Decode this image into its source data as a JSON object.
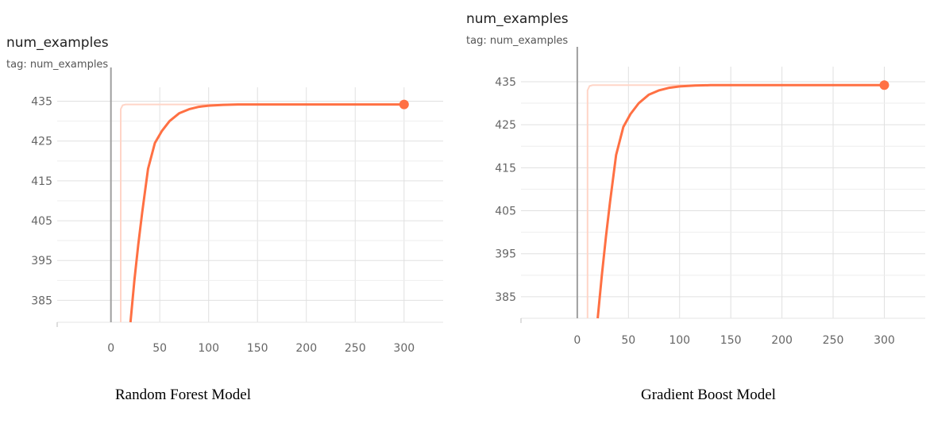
{
  "charts": [
    {
      "title": "num_examples",
      "tag": "tag: num_examples",
      "caption": "Random Forest Model"
    },
    {
      "title": "num_examples",
      "tag": "tag: num_examples",
      "caption": "Gradient Boost Model"
    }
  ],
  "colors": {
    "smoothed": "#ff7043",
    "raw": "#ffd5c7",
    "grid": "#e0e0e0",
    "zero_line": "#9e9e9e"
  },
  "chart_data": [
    {
      "type": "line",
      "title": "num_examples",
      "subtitle": "tag: num_examples",
      "xlabel": "",
      "ylabel": "",
      "xlim": [
        -55,
        340
      ],
      "ylim": [
        379.5,
        438.5
      ],
      "x_ticks": [
        0,
        50,
        100,
        150,
        200,
        250,
        300
      ],
      "y_ticks": [
        385,
        395,
        405,
        415,
        425,
        435
      ],
      "grid": true,
      "series": [
        {
          "role": "smoothed",
          "x": [
            20,
            24,
            28,
            32,
            38,
            45,
            52,
            60,
            70,
            80,
            90,
            100,
            115,
            130,
            150,
            200,
            250,
            300
          ],
          "y": [
            379.5,
            390,
            399,
            407,
            418,
            424.5,
            427.5,
            430,
            432,
            433,
            433.6,
            433.9,
            434.1,
            434.2,
            434.2,
            434.2,
            434.2,
            434.2
          ]
        },
        {
          "role": "raw",
          "x": [
            10,
            10,
            12,
            15,
            20,
            40,
            100,
            200,
            300
          ],
          "y": [
            379.5,
            433,
            434,
            434.2,
            434.2,
            434.2,
            434.2,
            434.2,
            434.2
          ]
        }
      ],
      "end_marker": {
        "x": 300,
        "y": 434.2
      }
    },
    {
      "type": "line",
      "title": "num_examples",
      "subtitle": "tag: num_examples",
      "xlabel": "",
      "ylabel": "",
      "xlim": [
        -55,
        340
      ],
      "ylim": [
        380,
        438.5
      ],
      "x_ticks": [
        0,
        50,
        100,
        150,
        200,
        250,
        300
      ],
      "y_ticks": [
        385,
        395,
        405,
        415,
        425,
        435
      ],
      "grid": true,
      "series": [
        {
          "role": "smoothed",
          "x": [
            20,
            24,
            28,
            32,
            38,
            45,
            52,
            60,
            70,
            80,
            90,
            100,
            115,
            130,
            150,
            200,
            250,
            300
          ],
          "y": [
            380,
            390,
            399,
            407,
            418,
            424.5,
            427.5,
            430,
            432,
            433,
            433.6,
            433.9,
            434.1,
            434.2,
            434.2,
            434.2,
            434.2,
            434.2
          ]
        },
        {
          "role": "raw",
          "x": [
            10,
            10,
            12,
            15,
            20,
            40,
            100,
            200,
            300
          ],
          "y": [
            380,
            433,
            434,
            434.2,
            434.2,
            434.2,
            434.2,
            434.2,
            434.2
          ]
        }
      ],
      "end_marker": {
        "x": 300,
        "y": 434.2
      }
    }
  ]
}
